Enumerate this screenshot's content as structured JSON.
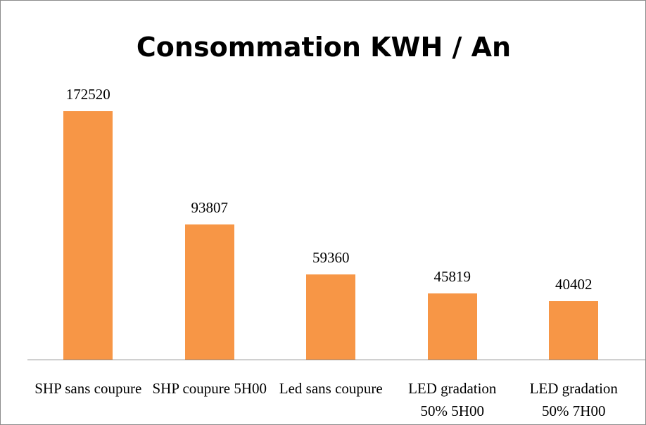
{
  "chart_data": {
    "type": "bar",
    "title": "Consommation KWH / An",
    "categories": [
      "SHP sans coupure",
      "SHP coupure 5H00",
      "Led sans coupure",
      "LED gradation 50% 5H00",
      "LED gradation 50% 7H00"
    ],
    "values": [
      172520,
      93807,
      59360,
      45819,
      40402
    ],
    "color": "#f79646"
  }
}
